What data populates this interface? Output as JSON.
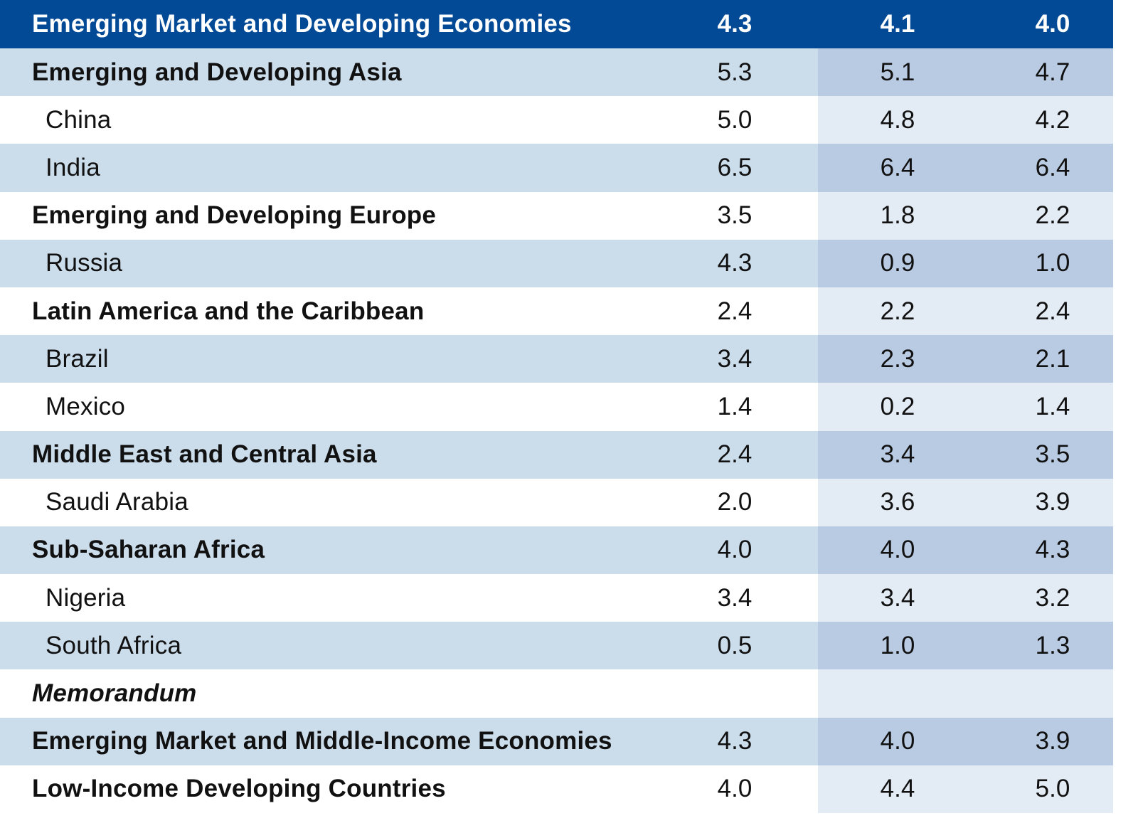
{
  "colors": {
    "header_bg": "#024a96",
    "shade_left": "#cbdceb",
    "shade_right": "#b9cbe3",
    "plain_left": "#ffffff",
    "plain_right": "#e3ebf4"
  },
  "header": {
    "label": "Emerging Market and Developing Economies",
    "values": [
      "4.3",
      "4.1",
      "4.0"
    ]
  },
  "rows": [
    {
      "label": "Emerging and Developing Asia",
      "values": [
        "5.3",
        "5.1",
        "4.7"
      ],
      "level": "group"
    },
    {
      "label": "China",
      "values": [
        "5.0",
        "4.8",
        "4.2"
      ],
      "level": "country"
    },
    {
      "label": "India",
      "values": [
        "6.5",
        "6.4",
        "6.4"
      ],
      "level": "country"
    },
    {
      "label": "Emerging and Developing Europe",
      "values": [
        "3.5",
        "1.8",
        "2.2"
      ],
      "level": "group"
    },
    {
      "label": "Russia",
      "values": [
        "4.3",
        "0.9",
        "1.0"
      ],
      "level": "country"
    },
    {
      "label": "Latin America and the Caribbean",
      "values": [
        "2.4",
        "2.2",
        "2.4"
      ],
      "level": "group"
    },
    {
      "label": "Brazil",
      "values": [
        "3.4",
        "2.3",
        "2.1"
      ],
      "level": "country"
    },
    {
      "label": "Mexico",
      "values": [
        "1.4",
        "0.2",
        "1.4"
      ],
      "level": "country"
    },
    {
      "label": "Middle East and Central Asia",
      "values": [
        "2.4",
        "3.4",
        "3.5"
      ],
      "level": "group"
    },
    {
      "label": "Saudi Arabia",
      "values": [
        "2.0",
        "3.6",
        "3.9"
      ],
      "level": "country"
    },
    {
      "label": "Sub-Saharan Africa",
      "values": [
        "4.0",
        "4.0",
        "4.3"
      ],
      "level": "group"
    },
    {
      "label": "Nigeria",
      "values": [
        "3.4",
        "3.4",
        "3.2"
      ],
      "level": "country"
    },
    {
      "label": "South Africa",
      "values": [
        "0.5",
        "1.0",
        "1.3"
      ],
      "level": "country"
    },
    {
      "label": "Memorandum",
      "values": [
        "",
        "",
        ""
      ],
      "level": "memo"
    },
    {
      "label": "Emerging Market and Middle-Income Economies",
      "values": [
        "4.3",
        "4.0",
        "3.9"
      ],
      "level": "group"
    },
    {
      "label": "Low-Income Developing Countries",
      "values": [
        "4.0",
        "4.4",
        "5.0"
      ],
      "level": "group"
    }
  ]
}
